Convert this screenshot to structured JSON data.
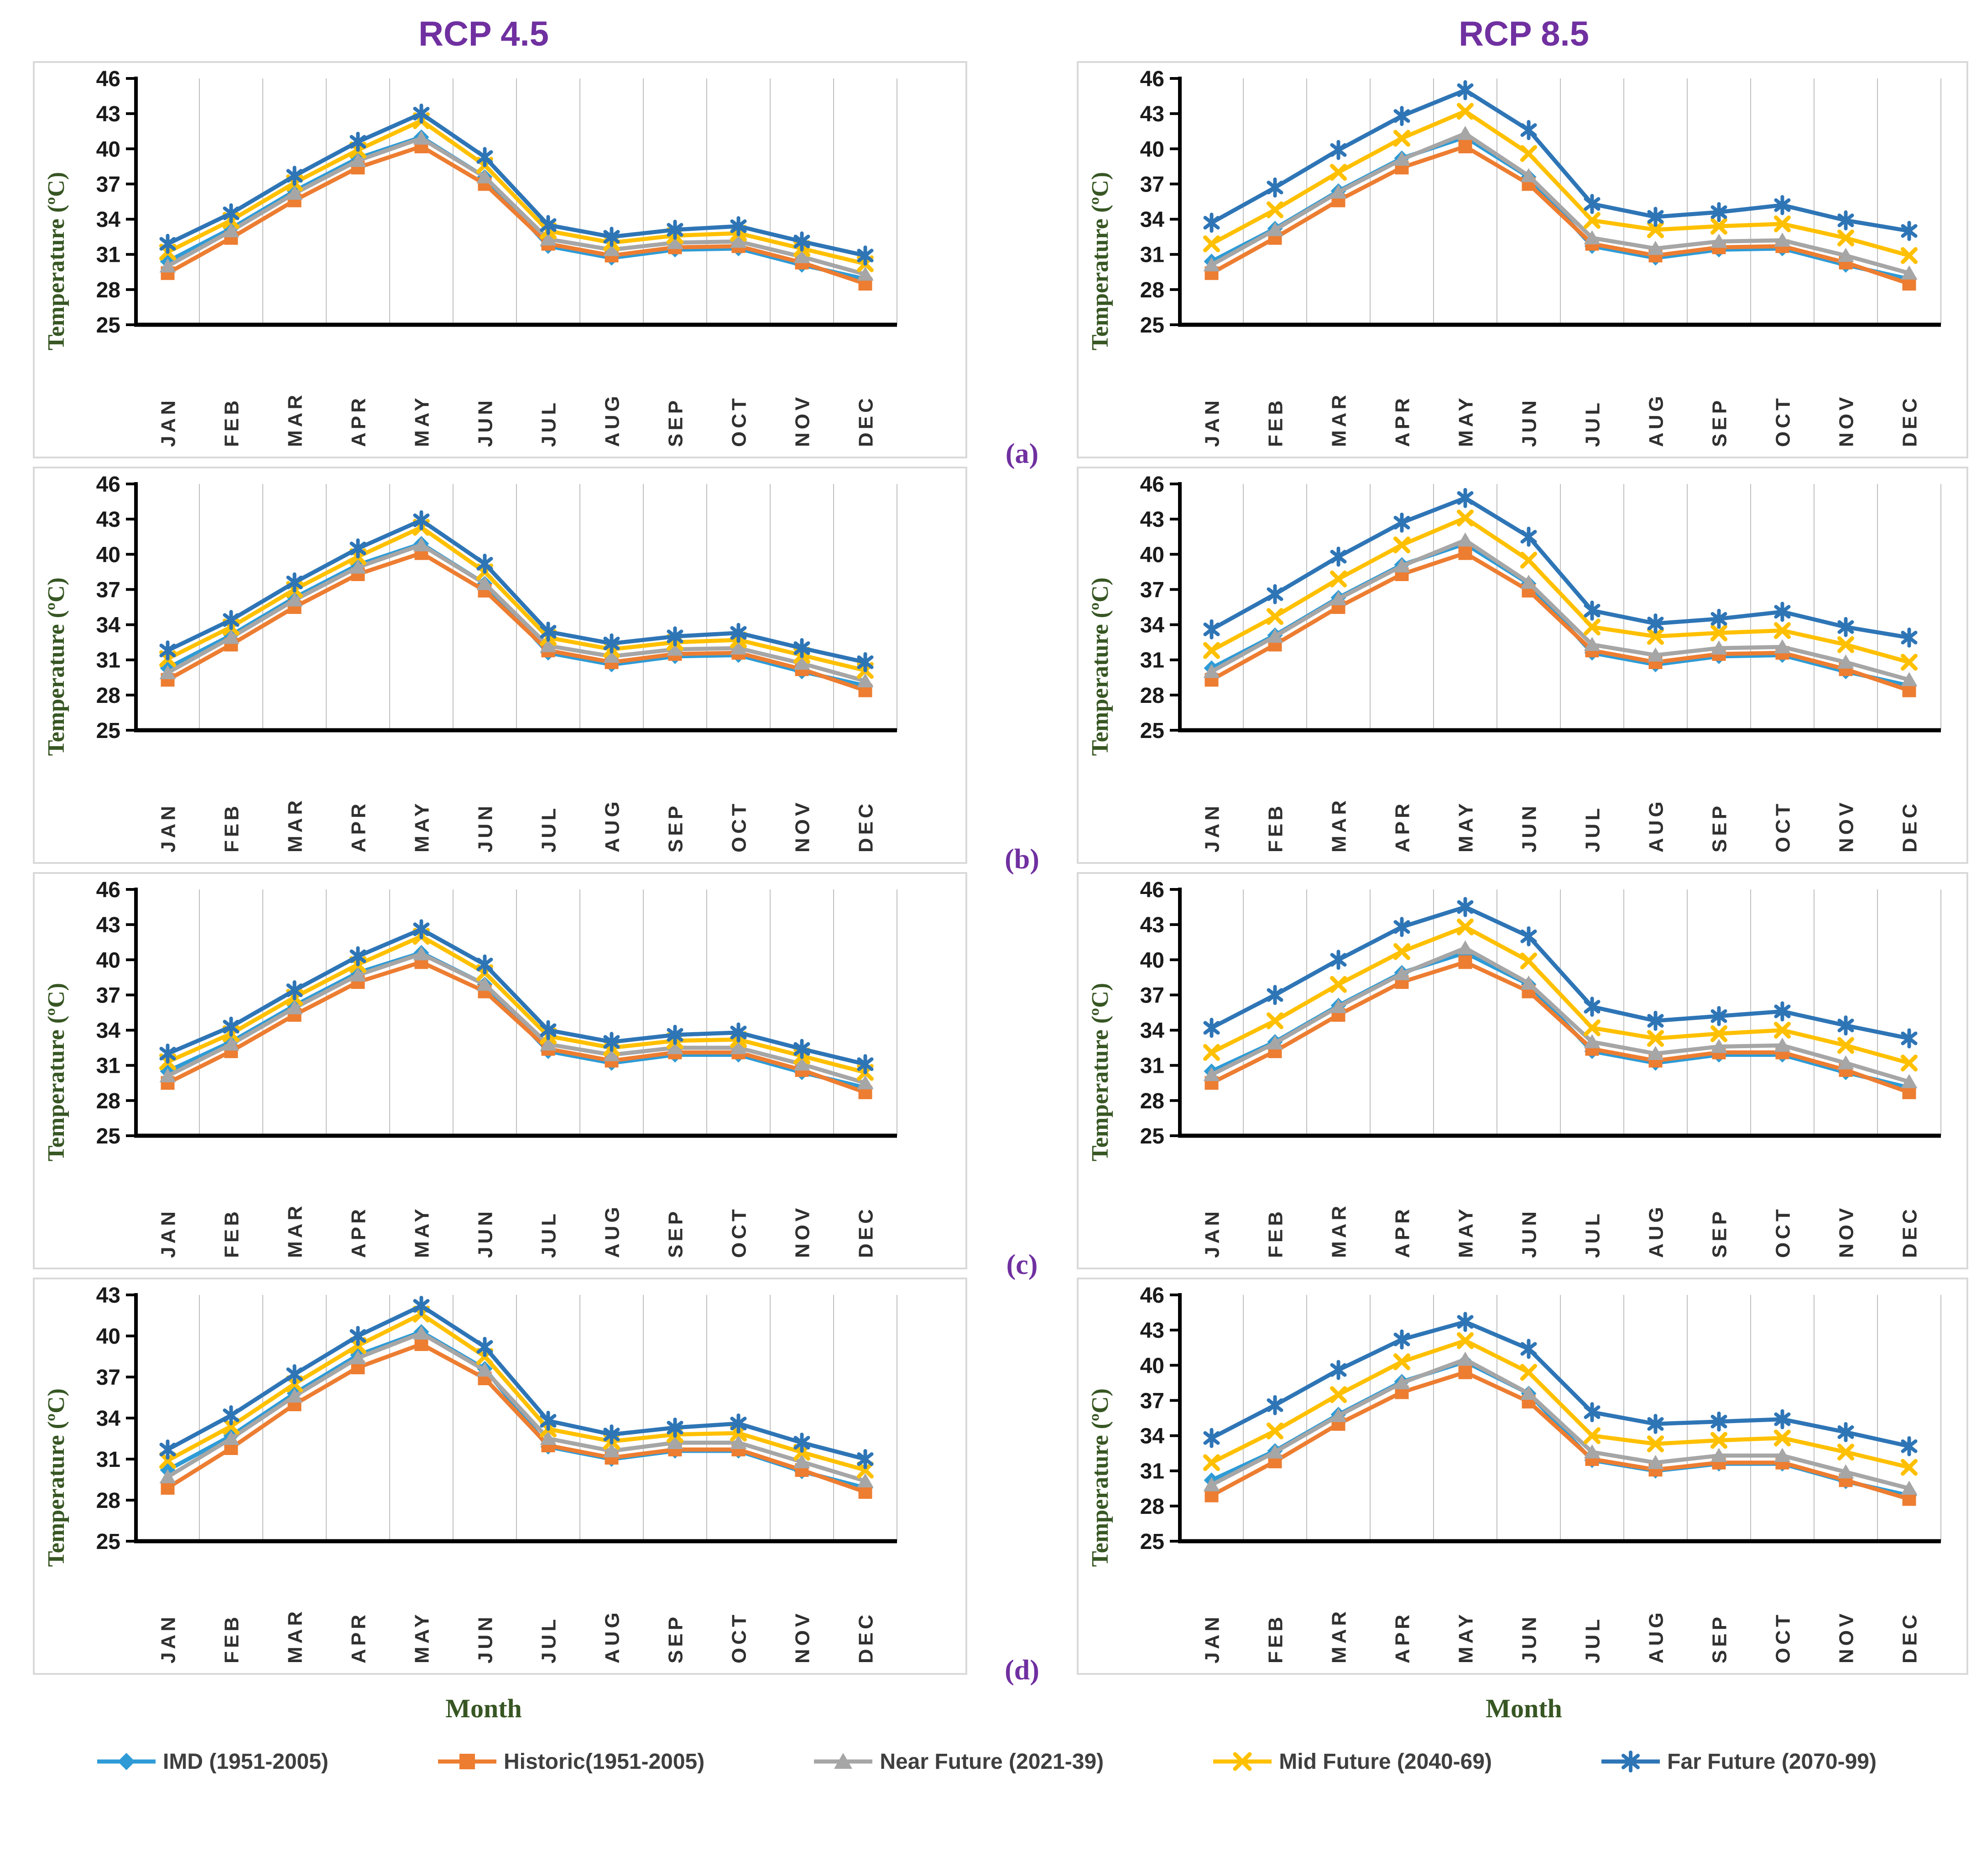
{
  "titles": {
    "left": "RCP 4.5",
    "right": "RCP 8.5"
  },
  "row_labels": [
    "(a)",
    "(b)",
    "(c)",
    "(d)"
  ],
  "axis": {
    "y_label": "Temperature (ºC)",
    "x_label": "Month"
  },
  "months": [
    "JAN",
    "FEB",
    "MAR",
    "APR",
    "MAY",
    "JUN",
    "JUL",
    "AUG",
    "SEP",
    "OCT",
    "NOV",
    "DEC"
  ],
  "colors": {
    "title_purple": "#7030A0",
    "label_green": "#375623",
    "axis_black": "#000000",
    "gridline_gray": "#BFBFBF",
    "panel_border": "#D9D9D9",
    "tick_text": "#1a1a1a",
    "month_text": "#303030"
  },
  "series_meta": [
    {
      "key": "imd",
      "label": "IMD (1951-2005)",
      "color": "#2E9BD6",
      "marker": "diamond"
    },
    {
      "key": "historic",
      "label": "Historic(1951-2005)",
      "color": "#ED7D31",
      "marker": "square"
    },
    {
      "key": "near",
      "label": "Near Future (2021-39)",
      "color": "#A6A6A6",
      "marker": "triangle"
    },
    {
      "key": "mid",
      "label": "Mid Future (2040-69)",
      "color": "#FFC000",
      "marker": "x"
    },
    {
      "key": "far",
      "label": "Far Future (2070-99)",
      "color": "#2E75B6",
      "marker": "star"
    }
  ],
  "chart_data": [
    {
      "id": "a_rcp45",
      "type": "line",
      "scenario": "RCP 4.5",
      "panel_label": "(a)",
      "ylim": [
        25,
        46
      ],
      "yticks": [
        46,
        43,
        40,
        37,
        34,
        31,
        28,
        25
      ],
      "grid": "vertical",
      "series": [
        {
          "key": "imd",
          "values": [
            30.4,
            33.2,
            36.4,
            39.2,
            41.0,
            37.6,
            31.7,
            30.7,
            31.4,
            31.5,
            30.1,
            28.9
          ]
        },
        {
          "key": "historic",
          "values": [
            29.4,
            32.4,
            35.6,
            38.4,
            40.2,
            37.0,
            31.9,
            30.9,
            31.6,
            31.7,
            30.3,
            28.5
          ]
        },
        {
          "key": "near",
          "values": [
            30.0,
            33.0,
            36.2,
            39.0,
            40.9,
            37.6,
            32.3,
            31.4,
            32.0,
            32.1,
            30.8,
            29.3
          ]
        },
        {
          "key": "mid",
          "values": [
            31.2,
            33.9,
            37.1,
            39.9,
            42.4,
            38.6,
            33.0,
            32.0,
            32.6,
            32.8,
            31.5,
            30.2
          ]
        },
        {
          "key": "far",
          "values": [
            31.9,
            34.5,
            37.7,
            40.6,
            43.0,
            39.3,
            33.5,
            32.5,
            33.1,
            33.4,
            32.1,
            30.9
          ]
        }
      ]
    },
    {
      "id": "a_rcp85",
      "type": "line",
      "scenario": "RCP 8.5",
      "panel_label": "(a)",
      "ylim": [
        25,
        46
      ],
      "yticks": [
        46,
        43,
        40,
        37,
        34,
        31,
        28,
        25
      ],
      "grid": "vertical",
      "series": [
        {
          "key": "imd",
          "values": [
            30.4,
            33.2,
            36.4,
            39.2,
            41.0,
            37.6,
            31.7,
            30.7,
            31.4,
            31.5,
            30.1,
            28.9
          ]
        },
        {
          "key": "historic",
          "values": [
            29.4,
            32.4,
            35.6,
            38.4,
            40.2,
            37.0,
            31.9,
            30.9,
            31.6,
            31.7,
            30.3,
            28.5
          ]
        },
        {
          "key": "near",
          "values": [
            30.1,
            33.1,
            36.3,
            39.1,
            41.3,
            37.7,
            32.4,
            31.5,
            32.1,
            32.2,
            30.9,
            29.4
          ]
        },
        {
          "key": "mid",
          "values": [
            31.9,
            34.8,
            38.0,
            40.9,
            43.2,
            39.6,
            33.9,
            33.1,
            33.4,
            33.6,
            32.4,
            30.9
          ]
        },
        {
          "key": "far",
          "values": [
            33.7,
            36.7,
            39.9,
            42.8,
            45.0,
            41.6,
            35.3,
            34.2,
            34.6,
            35.2,
            33.9,
            33.0
          ]
        }
      ]
    },
    {
      "id": "b_rcp45",
      "type": "line",
      "scenario": "RCP 4.5",
      "panel_label": "(b)",
      "ylim": [
        25,
        46
      ],
      "yticks": [
        46,
        43,
        40,
        37,
        34,
        31,
        28,
        25
      ],
      "grid": "vertical",
      "series": [
        {
          "key": "imd",
          "values": [
            30.3,
            33.1,
            36.3,
            39.1,
            40.9,
            37.5,
            31.6,
            30.6,
            31.3,
            31.4,
            30.0,
            28.8
          ]
        },
        {
          "key": "historic",
          "values": [
            29.3,
            32.3,
            35.5,
            38.3,
            40.1,
            36.9,
            31.8,
            30.8,
            31.5,
            31.6,
            30.2,
            28.4
          ]
        },
        {
          "key": "near",
          "values": [
            29.9,
            32.9,
            36.1,
            38.9,
            40.8,
            37.5,
            32.2,
            31.3,
            31.9,
            32.0,
            30.7,
            29.2
          ]
        },
        {
          "key": "mid",
          "values": [
            31.1,
            33.8,
            37.0,
            39.8,
            42.3,
            38.5,
            32.9,
            31.9,
            32.5,
            32.7,
            31.4,
            30.1
          ]
        },
        {
          "key": "far",
          "values": [
            31.8,
            34.4,
            37.6,
            40.5,
            42.9,
            39.2,
            33.4,
            32.4,
            33.0,
            33.3,
            32.0,
            30.8
          ]
        }
      ]
    },
    {
      "id": "b_rcp85",
      "type": "line",
      "scenario": "RCP 8.5",
      "panel_label": "(b)",
      "ylim": [
        25,
        46
      ],
      "yticks": [
        46,
        43,
        40,
        37,
        34,
        31,
        28,
        25
      ],
      "grid": "vertical",
      "series": [
        {
          "key": "imd",
          "values": [
            30.3,
            33.1,
            36.3,
            39.1,
            40.9,
            37.5,
            31.6,
            30.6,
            31.3,
            31.4,
            30.0,
            28.8
          ]
        },
        {
          "key": "historic",
          "values": [
            29.3,
            32.3,
            35.5,
            38.3,
            40.1,
            36.9,
            31.8,
            30.8,
            31.5,
            31.6,
            30.2,
            28.4
          ]
        },
        {
          "key": "near",
          "values": [
            30.0,
            33.0,
            36.2,
            39.0,
            41.2,
            37.6,
            32.3,
            31.4,
            32.0,
            32.1,
            30.8,
            29.3
          ]
        },
        {
          "key": "mid",
          "values": [
            31.8,
            34.7,
            37.9,
            40.8,
            43.1,
            39.5,
            33.8,
            33.0,
            33.3,
            33.5,
            32.3,
            30.8
          ]
        },
        {
          "key": "far",
          "values": [
            33.6,
            36.6,
            39.8,
            42.7,
            44.8,
            41.5,
            35.2,
            34.1,
            34.5,
            35.1,
            33.8,
            32.9
          ]
        }
      ]
    },
    {
      "id": "c_rcp45",
      "type": "line",
      "scenario": "RCP 4.5",
      "panel_label": "(c)",
      "ylim": [
        25,
        46
      ],
      "yticks": [
        46,
        43,
        40,
        37,
        34,
        31,
        28,
        25
      ],
      "grid": "vertical",
      "series": [
        {
          "key": "imd",
          "values": [
            30.5,
            33.0,
            36.1,
            38.9,
            40.6,
            37.9,
            32.2,
            31.2,
            31.9,
            31.9,
            30.4,
            29.1
          ]
        },
        {
          "key": "historic",
          "values": [
            29.5,
            32.2,
            35.3,
            38.1,
            39.8,
            37.3,
            32.4,
            31.4,
            32.1,
            32.1,
            30.6,
            28.7
          ]
        },
        {
          "key": "near",
          "values": [
            30.1,
            32.8,
            35.9,
            38.7,
            40.5,
            37.9,
            32.8,
            31.9,
            32.5,
            32.5,
            31.1,
            29.5
          ]
        },
        {
          "key": "mid",
          "values": [
            31.3,
            33.7,
            36.8,
            39.6,
            42.0,
            38.9,
            33.5,
            32.5,
            33.1,
            33.2,
            31.8,
            30.4
          ]
        },
        {
          "key": "far",
          "values": [
            32.0,
            34.3,
            37.4,
            40.3,
            42.6,
            39.6,
            34.0,
            33.0,
            33.6,
            33.8,
            32.4,
            31.1
          ]
        }
      ]
    },
    {
      "id": "c_rcp85",
      "type": "line",
      "scenario": "RCP 8.5",
      "panel_label": "(c)",
      "ylim": [
        25,
        46
      ],
      "yticks": [
        46,
        43,
        40,
        37,
        34,
        31,
        28,
        25
      ],
      "grid": "vertical",
      "series": [
        {
          "key": "imd",
          "values": [
            30.5,
            33.0,
            36.1,
            38.9,
            40.6,
            37.9,
            32.2,
            31.2,
            31.9,
            31.9,
            30.4,
            29.1
          ]
        },
        {
          "key": "historic",
          "values": [
            29.5,
            32.2,
            35.3,
            38.1,
            39.8,
            37.3,
            32.4,
            31.4,
            32.1,
            32.1,
            30.6,
            28.7
          ]
        },
        {
          "key": "near",
          "values": [
            30.2,
            32.9,
            36.0,
            38.8,
            41.0,
            38.0,
            33.0,
            32.0,
            32.6,
            32.7,
            31.2,
            29.6
          ]
        },
        {
          "key": "mid",
          "values": [
            32.1,
            34.8,
            37.9,
            40.7,
            42.8,
            39.9,
            34.2,
            33.3,
            33.7,
            34.0,
            32.7,
            31.2
          ]
        },
        {
          "key": "far",
          "values": [
            34.2,
            37.0,
            40.0,
            42.8,
            44.5,
            42.0,
            36.0,
            34.8,
            35.2,
            35.6,
            34.4,
            33.3
          ]
        }
      ]
    },
    {
      "id": "d_rcp45",
      "type": "line",
      "scenario": "RCP 4.5",
      "panel_label": "(d)",
      "ylim": [
        25,
        43
      ],
      "yticks": [
        43,
        40,
        37,
        34,
        31,
        28,
        25
      ],
      "grid": "vertical",
      "series": [
        {
          "key": "imd",
          "values": [
            30.2,
            32.7,
            35.8,
            38.6,
            40.3,
            37.6,
            31.9,
            31.0,
            31.6,
            31.6,
            30.1,
            28.9
          ]
        },
        {
          "key": "historic",
          "values": [
            28.9,
            31.8,
            35.0,
            37.7,
            39.4,
            36.9,
            32.0,
            31.1,
            31.7,
            31.7,
            30.2,
            28.6
          ]
        },
        {
          "key": "near",
          "values": [
            29.7,
            32.5,
            35.6,
            38.4,
            40.2,
            37.5,
            32.5,
            31.6,
            32.2,
            32.2,
            30.8,
            29.4
          ]
        },
        {
          "key": "mid",
          "values": [
            30.9,
            33.4,
            36.5,
            39.3,
            41.6,
            38.5,
            33.2,
            32.3,
            32.8,
            32.9,
            31.5,
            30.2
          ]
        },
        {
          "key": "far",
          "values": [
            31.7,
            34.2,
            37.2,
            40.0,
            42.2,
            39.2,
            33.8,
            32.8,
            33.3,
            33.6,
            32.2,
            31.0
          ]
        }
      ]
    },
    {
      "id": "d_rcp85",
      "type": "line",
      "scenario": "RCP 8.5",
      "panel_label": "(d)",
      "ylim": [
        25,
        46
      ],
      "yticks": [
        46,
        43,
        40,
        37,
        34,
        31,
        28,
        25
      ],
      "grid": "vertical",
      "series": [
        {
          "key": "imd",
          "values": [
            30.2,
            32.7,
            35.8,
            38.6,
            40.3,
            37.6,
            31.9,
            31.0,
            31.6,
            31.6,
            30.1,
            28.9
          ]
        },
        {
          "key": "historic",
          "values": [
            28.9,
            31.8,
            35.0,
            37.7,
            39.4,
            36.9,
            32.0,
            31.1,
            31.7,
            31.7,
            30.2,
            28.6
          ]
        },
        {
          "key": "near",
          "values": [
            29.8,
            32.6,
            35.7,
            38.5,
            40.5,
            37.6,
            32.6,
            31.7,
            32.3,
            32.3,
            30.9,
            29.5
          ]
        },
        {
          "key": "mid",
          "values": [
            31.7,
            34.4,
            37.5,
            40.3,
            42.1,
            39.4,
            34.0,
            33.3,
            33.6,
            33.8,
            32.6,
            31.3
          ]
        },
        {
          "key": "far",
          "values": [
            33.8,
            36.6,
            39.6,
            42.2,
            43.7,
            41.4,
            36.0,
            35.0,
            35.2,
            35.4,
            34.3,
            33.1
          ]
        }
      ]
    }
  ]
}
